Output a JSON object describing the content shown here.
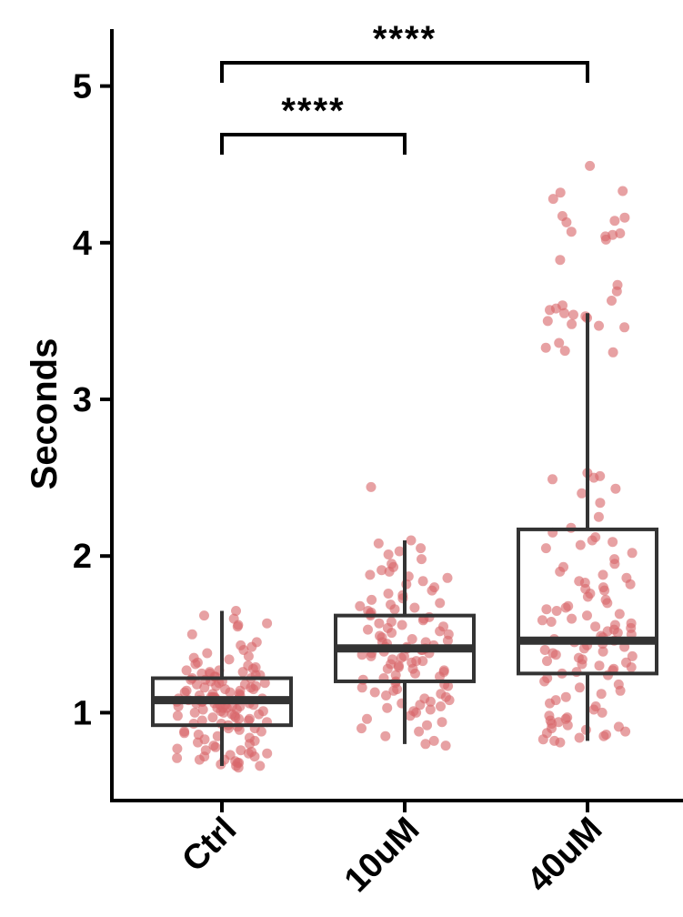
{
  "chart_data": {
    "type": "box",
    "ylabel": "Seconds",
    "xlabel": "",
    "ylim": [
      0.45,
      5.35
    ],
    "yticks": [
      1,
      2,
      3,
      4,
      5
    ],
    "ytick_labels": [
      "1",
      "2",
      "3",
      "4",
      "5"
    ],
    "categories": [
      "Ctrl",
      "10uM",
      "40uM"
    ],
    "colors": {
      "points": "#d9676b",
      "box": "#333333",
      "axis": "#000000"
    },
    "jitter_points_shown": true,
    "boxes": [
      {
        "category": "Ctrl",
        "whisker_low": 0.66,
        "q1": 0.92,
        "median": 1.08,
        "q3": 1.22,
        "whisker_high": 1.65
      },
      {
        "category": "10uM",
        "whisker_low": 0.8,
        "q1": 1.2,
        "median": 1.41,
        "q3": 1.62,
        "whisker_high": 2.1
      },
      {
        "category": "40uM",
        "whisker_low": 0.82,
        "q1": 1.25,
        "median": 1.46,
        "q3": 2.17,
        "whisker_high": 3.55
      }
    ],
    "significance": [
      {
        "from": "Ctrl",
        "to": "10uM",
        "label": "****"
      },
      {
        "from": "Ctrl",
        "to": "40uM",
        "label": "****"
      }
    ],
    "points": [
      {
        "category": "Ctrl",
        "values": [
          1.65,
          1.62,
          1.6,
          1.57,
          1.56,
          1.55,
          1.5,
          1.45,
          1.43,
          1.42,
          1.4,
          1.38,
          1.36,
          1.35,
          1.34,
          1.32,
          1.31,
          1.3,
          1.29,
          1.28,
          1.27,
          1.27,
          1.26,
          1.26,
          1.25,
          1.25,
          1.24,
          1.24,
          1.23,
          1.23,
          1.22,
          1.22,
          1.21,
          1.21,
          1.2,
          1.2,
          1.19,
          1.19,
          1.18,
          1.18,
          1.17,
          1.17,
          1.16,
          1.16,
          1.15,
          1.15,
          1.14,
          1.14,
          1.13,
          1.13,
          1.12,
          1.12,
          1.11,
          1.11,
          1.1,
          1.1,
          1.1,
          1.09,
          1.09,
          1.09,
          1.08,
          1.08,
          1.08,
          1.07,
          1.07,
          1.07,
          1.06,
          1.06,
          1.06,
          1.05,
          1.05,
          1.05,
          1.04,
          1.04,
          1.04,
          1.03,
          1.03,
          1.03,
          1.02,
          1.02,
          1.01,
          1.01,
          1.0,
          1.0,
          0.99,
          0.99,
          0.98,
          0.98,
          0.97,
          0.97,
          0.96,
          0.96,
          0.95,
          0.95,
          0.94,
          0.93,
          0.93,
          0.92,
          0.91,
          0.9,
          0.9,
          0.89,
          0.88,
          0.88,
          0.87,
          0.86,
          0.85,
          0.84,
          0.83,
          0.82,
          0.81,
          0.8,
          0.79,
          0.78,
          0.77,
          0.76,
          0.76,
          0.75,
          0.74,
          0.74,
          0.73,
          0.72,
          0.72,
          0.71,
          0.7,
          0.7,
          0.69,
          0.68,
          0.68,
          0.67,
          0.66,
          0.66,
          0.65
        ]
      },
      {
        "category": "10uM",
        "values": [
          2.44,
          2.1,
          2.08,
          2.05,
          2.03,
          2.01,
          1.98,
          1.95,
          1.93,
          1.91,
          1.9,
          1.88,
          1.87,
          1.86,
          1.84,
          1.82,
          1.8,
          1.78,
          1.76,
          1.75,
          1.73,
          1.72,
          1.7,
          1.69,
          1.68,
          1.67,
          1.66,
          1.65,
          1.64,
          1.63,
          1.62,
          1.61,
          1.6,
          1.59,
          1.58,
          1.57,
          1.56,
          1.55,
          1.54,
          1.53,
          1.52,
          1.51,
          1.5,
          1.49,
          1.48,
          1.47,
          1.46,
          1.45,
          1.45,
          1.44,
          1.43,
          1.42,
          1.42,
          1.41,
          1.41,
          1.4,
          1.4,
          1.39,
          1.38,
          1.38,
          1.37,
          1.36,
          1.36,
          1.35,
          1.34,
          1.33,
          1.33,
          1.32,
          1.31,
          1.3,
          1.29,
          1.28,
          1.28,
          1.27,
          1.26,
          1.25,
          1.24,
          1.23,
          1.22,
          1.21,
          1.2,
          1.19,
          1.18,
          1.17,
          1.16,
          1.15,
          1.14,
          1.13,
          1.12,
          1.11,
          1.1,
          1.09,
          1.08,
          1.07,
          1.06,
          1.05,
          1.04,
          1.03,
          1.02,
          1.01,
          1.0,
          0.98,
          0.96,
          0.94,
          0.92,
          0.9,
          0.88,
          0.85,
          0.82,
          0.8,
          0.79
        ]
      },
      {
        "category": "40uM",
        "values": [
          4.49,
          4.33,
          4.32,
          4.28,
          4.17,
          4.16,
          4.14,
          4.13,
          4.07,
          4.06,
          4.05,
          4.04,
          4.02,
          3.89,
          3.73,
          3.69,
          3.63,
          3.6,
          3.58,
          3.57,
          3.55,
          3.54,
          3.53,
          3.52,
          3.5,
          3.48,
          3.47,
          3.46,
          3.36,
          3.33,
          3.31,
          3.3,
          2.53,
          2.51,
          2.5,
          2.49,
          2.43,
          2.4,
          2.34,
          2.25,
          2.18,
          2.15,
          2.12,
          2.1,
          2.09,
          2.07,
          2.05,
          2.02,
          1.98,
          1.95,
          1.93,
          1.9,
          1.88,
          1.86,
          1.84,
          1.83,
          1.82,
          1.8,
          1.79,
          1.78,
          1.76,
          1.74,
          1.72,
          1.7,
          1.68,
          1.67,
          1.66,
          1.65,
          1.63,
          1.62,
          1.6,
          1.59,
          1.58,
          1.57,
          1.56,
          1.55,
          1.54,
          1.53,
          1.52,
          1.51,
          1.5,
          1.49,
          1.48,
          1.47,
          1.46,
          1.45,
          1.44,
          1.43,
          1.42,
          1.41,
          1.4,
          1.39,
          1.38,
          1.37,
          1.36,
          1.35,
          1.34,
          1.33,
          1.32,
          1.31,
          1.3,
          1.29,
          1.28,
          1.27,
          1.26,
          1.25,
          1.24,
          1.22,
          1.2,
          1.18,
          1.16,
          1.14,
          1.12,
          1.1,
          1.08,
          1.06,
          1.04,
          1.02,
          1.0,
          0.98,
          0.97,
          0.96,
          0.95,
          0.94,
          0.93,
          0.92,
          0.91,
          0.9,
          0.89,
          0.88,
          0.87,
          0.86,
          0.85,
          0.84,
          0.83,
          0.82,
          0.81
        ]
      }
    ]
  }
}
